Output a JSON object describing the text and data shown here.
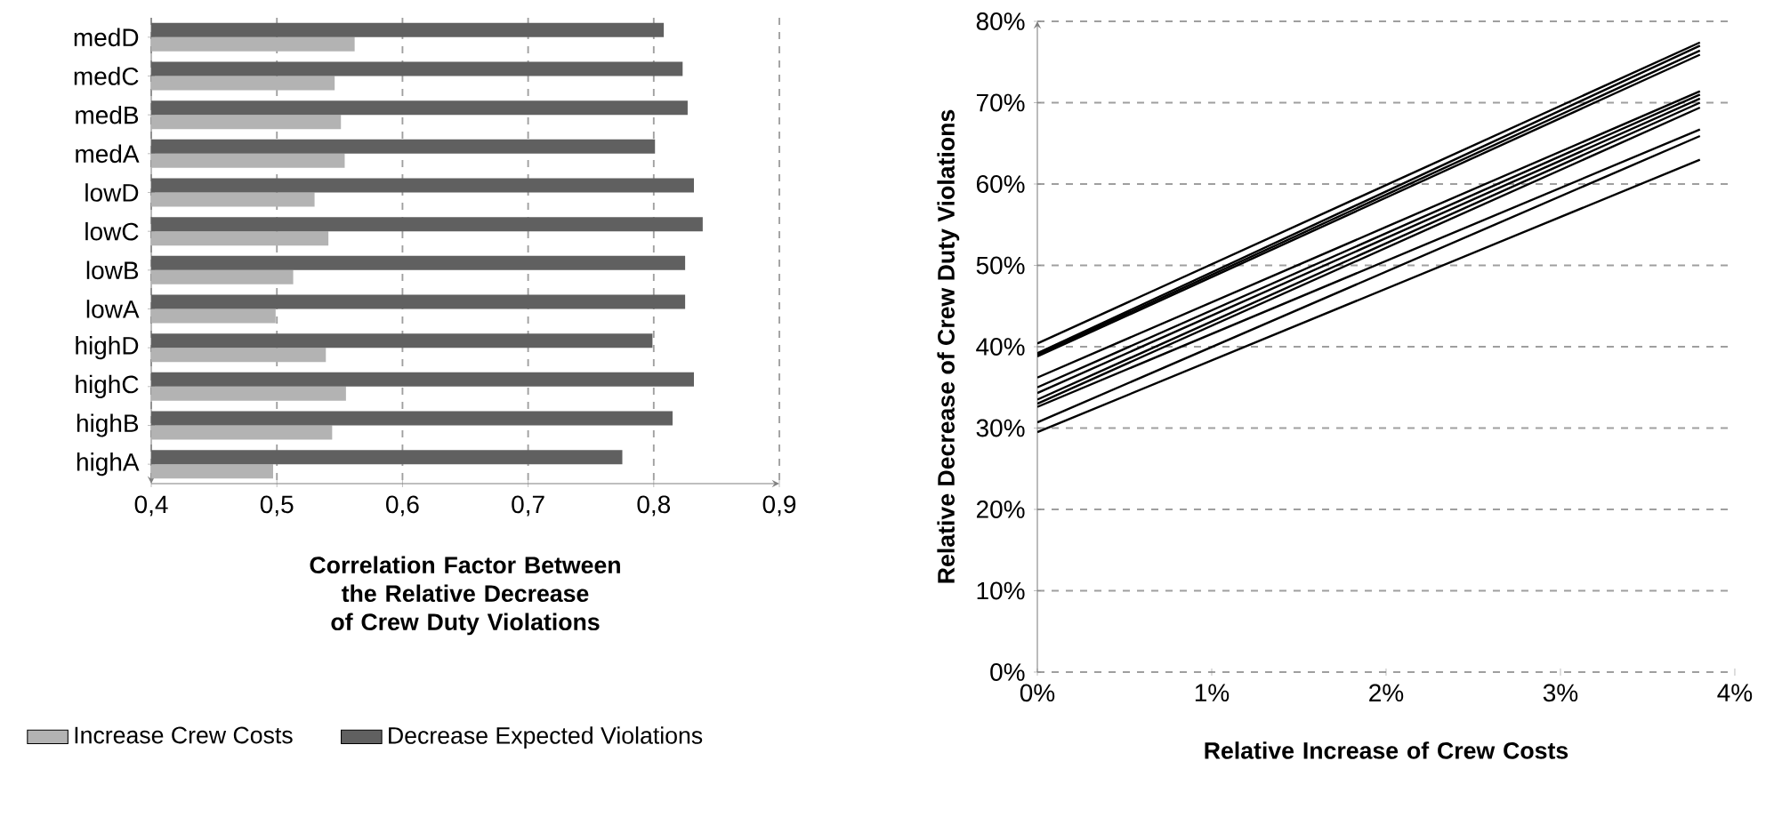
{
  "chart_data": [
    {
      "type": "bar",
      "orientation": "horizontal",
      "xlabel": "Correlation Factor Between the Relative Decrease of Crew Duty Violations",
      "categories": [
        "medD",
        "medC",
        "medB",
        "medA",
        "lowD",
        "lowC",
        "lowB",
        "lowA",
        "highD",
        "highC",
        "highB",
        "highA"
      ],
      "series": [
        {
          "name": "Increase Crew Costs",
          "color": "#b3b3b3",
          "values": [
            0.562,
            0.546,
            0.551,
            0.554,
            0.53,
            0.541,
            0.513,
            0.499,
            0.539,
            0.555,
            0.544,
            0.497
          ]
        },
        {
          "name": "Decrease Expected Violations",
          "color": "#606060",
          "values": [
            0.808,
            0.823,
            0.827,
            0.801,
            0.832,
            0.839,
            0.825,
            0.825,
            0.799,
            0.832,
            0.815,
            0.775
          ]
        }
      ],
      "xlim": [
        0.4,
        0.9
      ],
      "xticks": [
        {
          "value": 0.4,
          "label": "0,4"
        },
        {
          "value": 0.5,
          "label": "0,5"
        },
        {
          "value": 0.6,
          "label": "0,6"
        },
        {
          "value": 0.7,
          "label": "0,7"
        },
        {
          "value": 0.8,
          "label": "0,8"
        },
        {
          "value": 0.9,
          "label": "0,9"
        }
      ],
      "grid": "x",
      "legend": "bottom"
    },
    {
      "type": "line",
      "xlabel": "Relative Increase of Crew Costs",
      "ylabel": "Relative Decrease of Crew Duty Violations",
      "x": [
        0,
        3.8
      ],
      "series": [
        {
          "color": "#000000",
          "values": [
            40.4,
            77.4
          ]
        },
        {
          "color": "#000000",
          "values": [
            39.2,
            77.0
          ]
        },
        {
          "color": "#000000",
          "values": [
            39.0,
            76.4
          ]
        },
        {
          "color": "#000000",
          "values": [
            38.8,
            75.9
          ]
        },
        {
          "color": "#000000",
          "values": [
            36.2,
            71.4
          ]
        },
        {
          "color": "#000000",
          "values": [
            35.0,
            71.0
          ]
        },
        {
          "color": "#000000",
          "values": [
            34.3,
            70.5
          ]
        },
        {
          "color": "#000000",
          "values": [
            33.5,
            70.0
          ]
        },
        {
          "color": "#000000",
          "values": [
            33.0,
            69.4
          ]
        },
        {
          "color": "#000000",
          "values": [
            32.6,
            66.7
          ]
        },
        {
          "color": "#000000",
          "values": [
            30.7,
            65.9
          ]
        },
        {
          "color": "#000000",
          "values": [
            29.5,
            63.0
          ]
        }
      ],
      "xlim": [
        0,
        4
      ],
      "xticks": [
        {
          "value": 0,
          "label": "0%"
        },
        {
          "value": 1,
          "label": "1%"
        },
        {
          "value": 2,
          "label": "2%"
        },
        {
          "value": 3,
          "label": "3%"
        },
        {
          "value": 4,
          "label": "4%"
        }
      ],
      "ylim": [
        0,
        80
      ],
      "yticks": [
        {
          "value": 0,
          "label": "0%"
        },
        {
          "value": 10,
          "label": "10%"
        },
        {
          "value": 20,
          "label": "20%"
        },
        {
          "value": 30,
          "label": "30%"
        },
        {
          "value": 40,
          "label": "40%"
        },
        {
          "value": 50,
          "label": "50%"
        },
        {
          "value": 60,
          "label": "60%"
        },
        {
          "value": 70,
          "label": "70%"
        },
        {
          "value": 80,
          "label": "80%"
        }
      ],
      "grid": "y",
      "marker": "none",
      "line_style": "solid"
    }
  ]
}
